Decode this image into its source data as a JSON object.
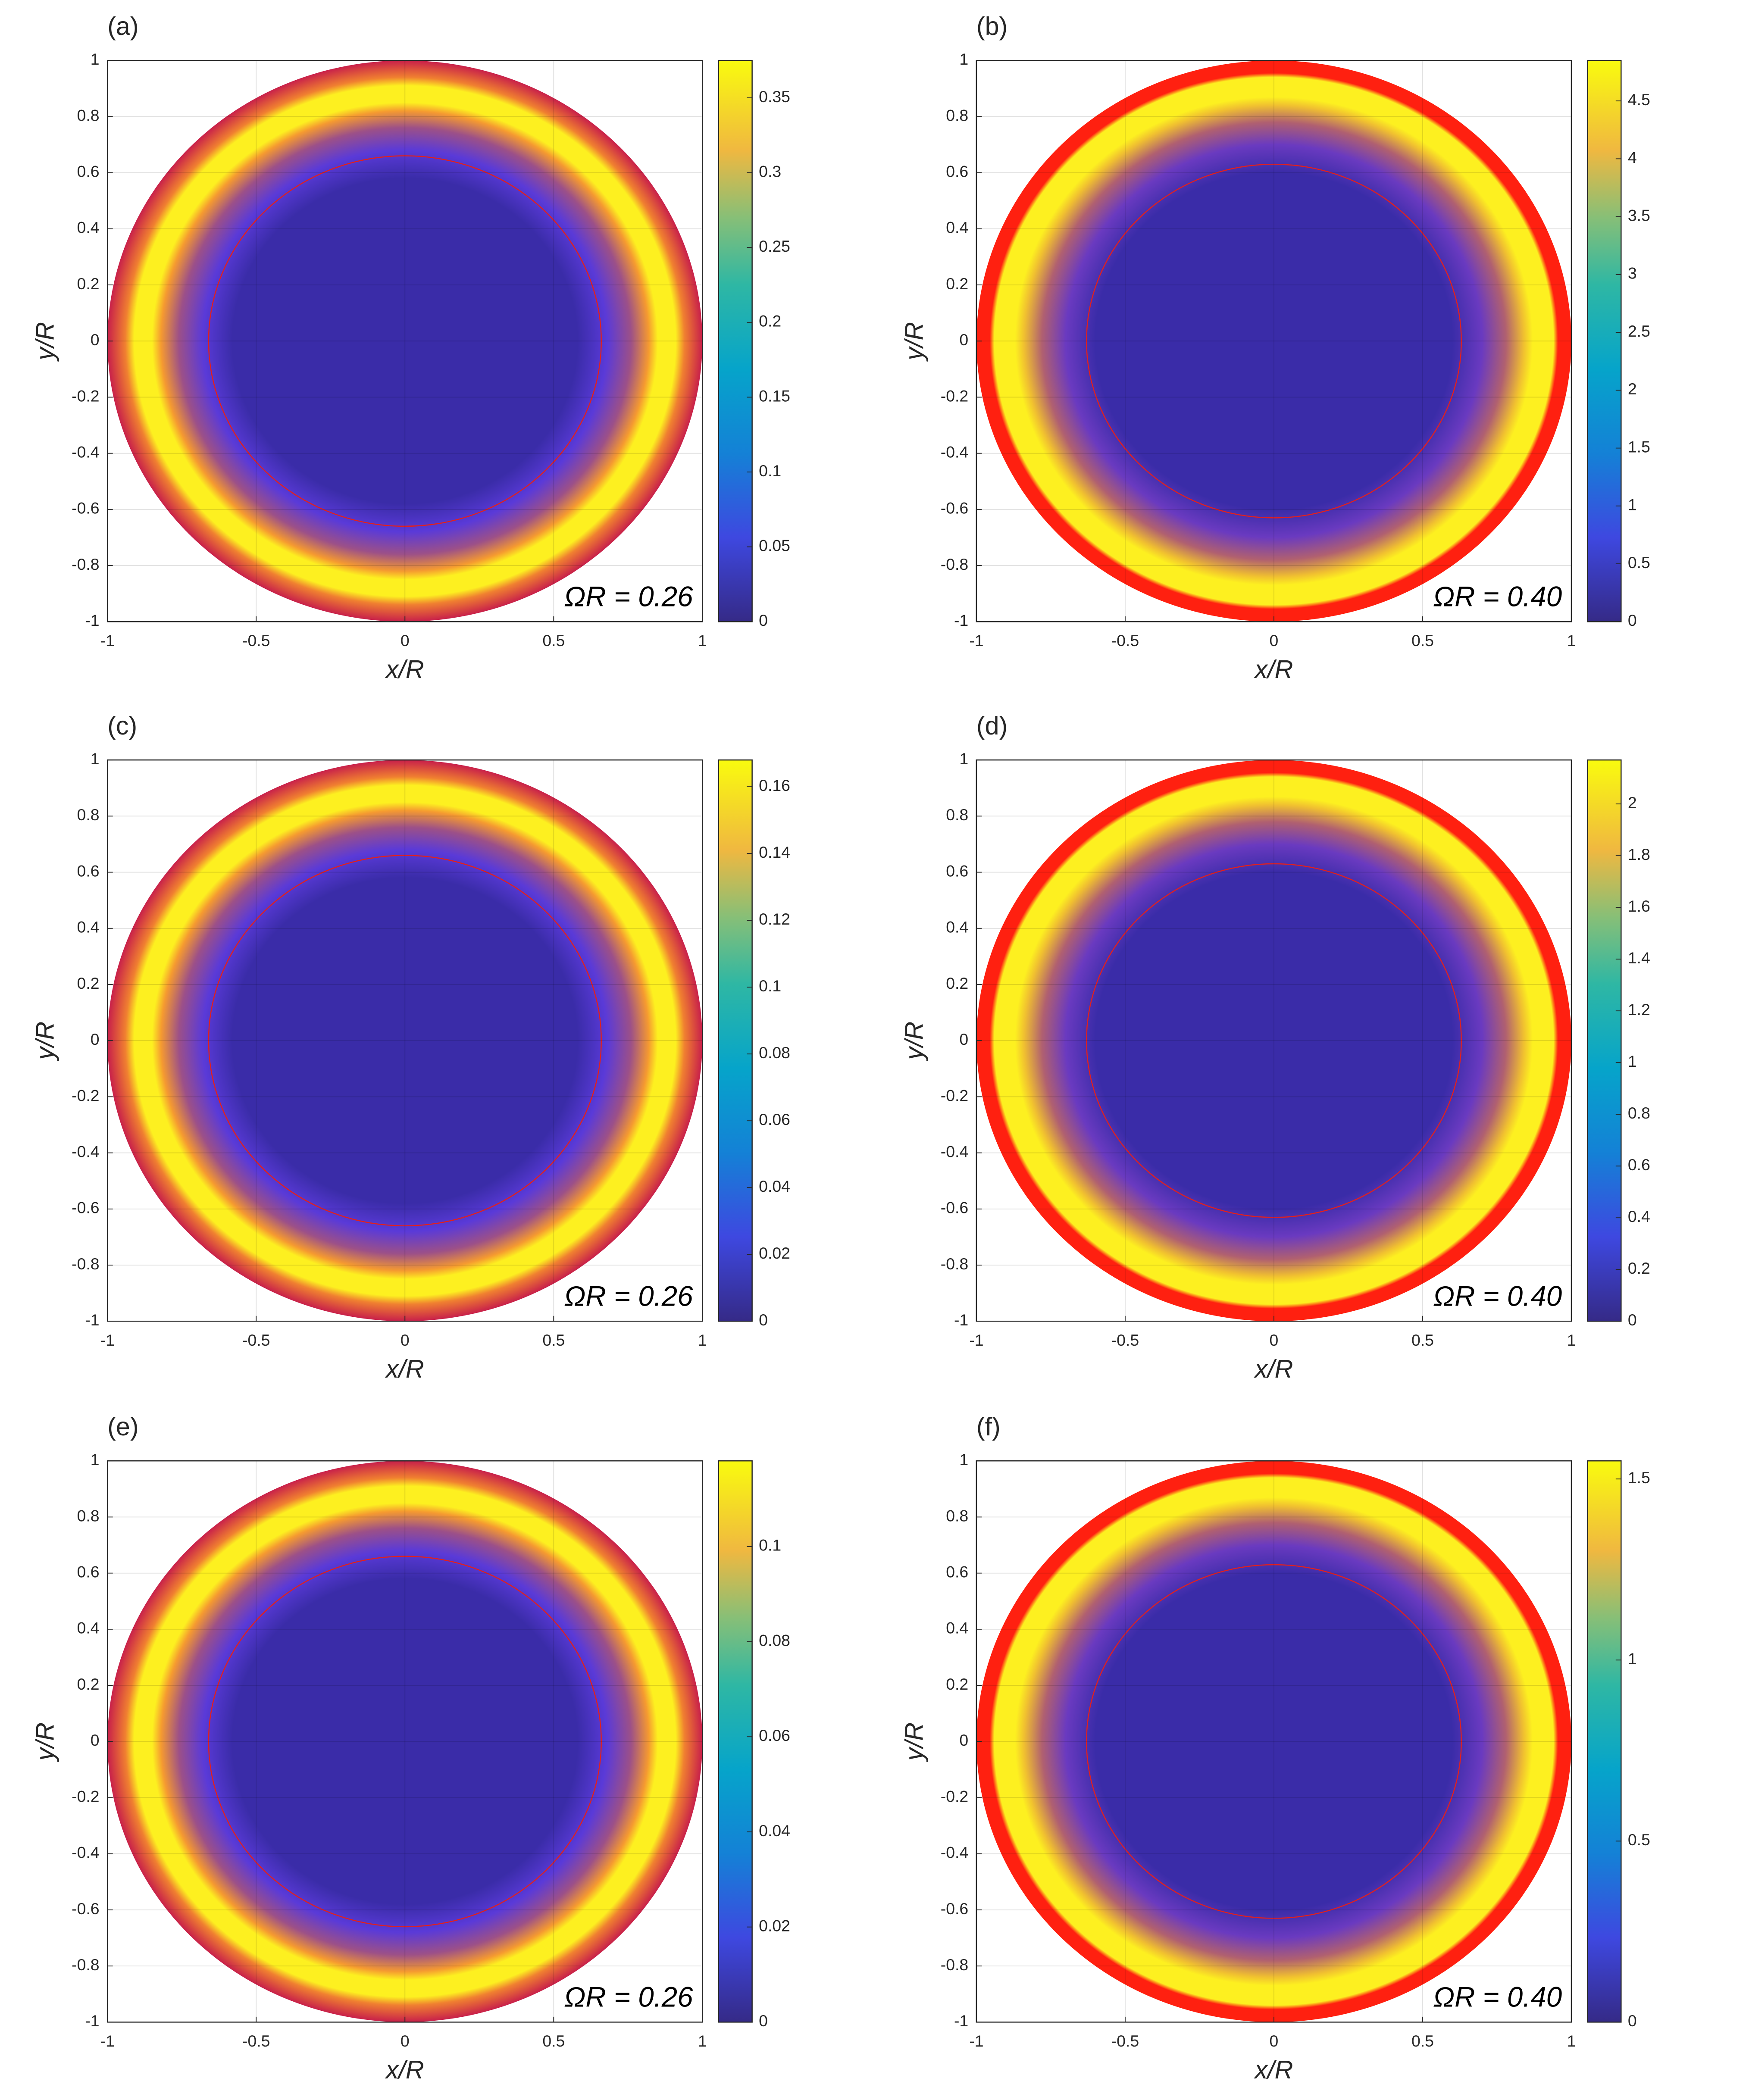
{
  "chart_data": [
    {
      "type": "contour",
      "label": "(a)",
      "annotation": "ΩR = 0.26",
      "xlabel": "x/R",
      "ylabel": "y/R",
      "xlim": [
        -1,
        1
      ],
      "ylim": [
        -1,
        1
      ],
      "xticks": [
        -1,
        -0.5,
        0,
        0.5,
        1
      ],
      "yticks": [
        -1,
        -0.8,
        -0.6,
        -0.4,
        -0.2,
        0,
        0.2,
        0.4,
        0.6,
        0.8,
        1
      ],
      "clim": [
        0,
        0.375
      ],
      "cticks": [
        0,
        0.05,
        0.1,
        0.15,
        0.2,
        0.25,
        0.3,
        0.35
      ],
      "grid": true
    },
    {
      "type": "contour",
      "label": "(b)",
      "annotation": "ΩR = 0.40",
      "xlabel": "x/R",
      "ylabel": "y/R",
      "xlim": [
        -1,
        1
      ],
      "ylim": [
        -1,
        1
      ],
      "xticks": [
        -1,
        -0.5,
        0,
        0.5,
        1
      ],
      "yticks": [
        -1,
        -0.8,
        -0.6,
        -0.4,
        -0.2,
        0,
        0.2,
        0.4,
        0.6,
        0.8,
        1
      ],
      "clim": [
        0,
        4.85
      ],
      "cticks": [
        0,
        0.5,
        1,
        1.5,
        2,
        2.5,
        3,
        3.5,
        4,
        4.5
      ],
      "grid": true
    },
    {
      "type": "contour",
      "label": "(c)",
      "annotation": "ΩR = 0.26",
      "xlabel": "x/R",
      "ylabel": "y/R",
      "xlim": [
        -1,
        1
      ],
      "ylim": [
        -1,
        1
      ],
      "xticks": [
        -1,
        -0.5,
        0,
        0.5,
        1
      ],
      "yticks": [
        -1,
        -0.8,
        -0.6,
        -0.4,
        -0.2,
        0,
        0.2,
        0.4,
        0.6,
        0.8,
        1
      ],
      "clim": [
        0,
        0.168
      ],
      "cticks": [
        0,
        0.02,
        0.04,
        0.06,
        0.08,
        0.1,
        0.12,
        0.14,
        0.16
      ],
      "grid": true
    },
    {
      "type": "contour",
      "label": "(d)",
      "annotation": "ΩR = 0.40",
      "xlabel": "x/R",
      "ylabel": "y/R",
      "xlim": [
        -1,
        1
      ],
      "ylim": [
        -1,
        1
      ],
      "xticks": [
        -1,
        -0.5,
        0,
        0.5,
        1
      ],
      "yticks": [
        -1,
        -0.8,
        -0.6,
        -0.4,
        -0.2,
        0,
        0.2,
        0.4,
        0.6,
        0.8,
        1
      ],
      "clim": [
        0,
        2.17
      ],
      "cticks": [
        0,
        0.2,
        0.4,
        0.6,
        0.8,
        1,
        1.2,
        1.4,
        1.6,
        1.8,
        2
      ],
      "grid": true
    },
    {
      "type": "contour",
      "label": "(e)",
      "annotation": "ΩR = 0.26",
      "xlabel": "x/R",
      "ylabel": "y/R",
      "xlim": [
        -1,
        1
      ],
      "ylim": [
        -1,
        1
      ],
      "xticks": [
        -1,
        -0.5,
        0,
        0.5,
        1
      ],
      "yticks": [
        -1,
        -0.8,
        -0.6,
        -0.4,
        -0.2,
        0,
        0.2,
        0.4,
        0.6,
        0.8,
        1
      ],
      "clim": [
        0,
        0.118
      ],
      "cticks": [
        0,
        0.02,
        0.04,
        0.06,
        0.08,
        0.1
      ],
      "grid": true
    },
    {
      "type": "contour",
      "label": "(f)",
      "annotation": "ΩR = 0.40",
      "xlabel": "x/R",
      "ylabel": "y/R",
      "xlim": [
        -1,
        1
      ],
      "ylim": [
        -1,
        1
      ],
      "xticks": [
        -1,
        -0.5,
        0,
        0.5,
        1
      ],
      "yticks": [
        -1,
        -0.8,
        -0.6,
        -0.4,
        -0.2,
        0,
        0.2,
        0.4,
        0.6,
        0.8,
        1
      ],
      "clim": [
        0,
        1.55
      ],
      "cticks": [
        0,
        0.5,
        1,
        1.5
      ],
      "grid": true
    }
  ]
}
